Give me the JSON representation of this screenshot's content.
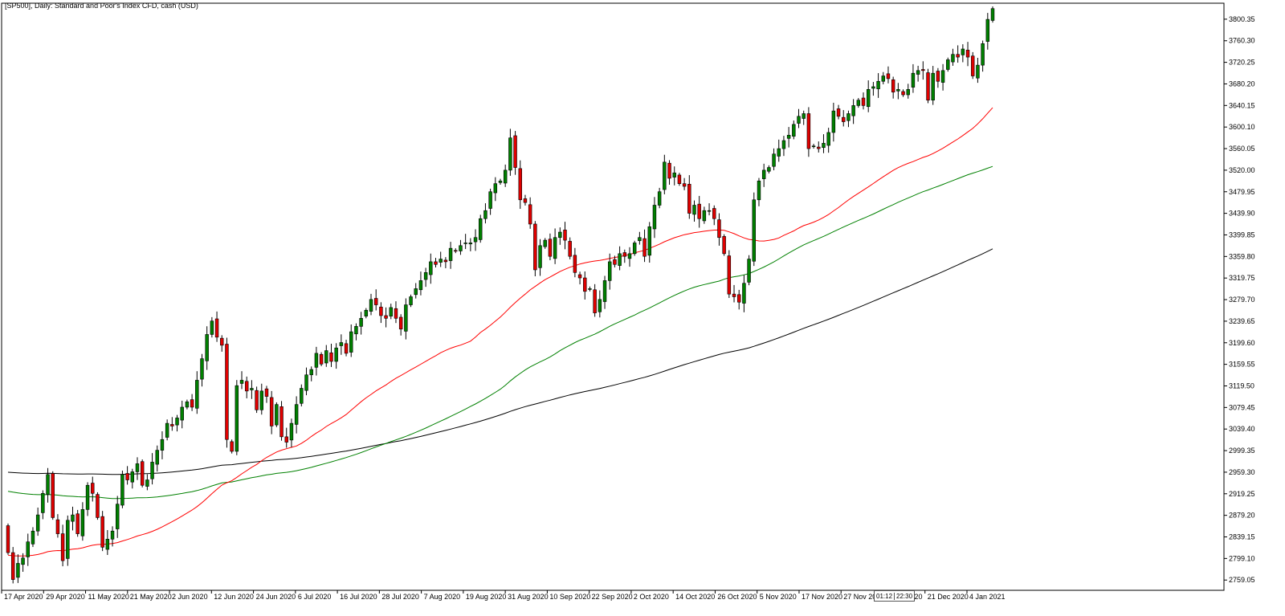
{
  "chart_data": {
    "type": "candlestick",
    "title": "[SP500], Daily:  Standard and Poor's Index CFD, cash (USD)",
    "symbol": "SP500",
    "timeframe": "Daily",
    "ylim": [
      2740,
      3830
    ],
    "y_ticks": [
      "3800.35",
      "3760.30",
      "3720.25",
      "3680.20",
      "3640.15",
      "3600.10",
      "3560.05",
      "3520.00",
      "3479.95",
      "3439.90",
      "3399.85",
      "3359.80",
      "3319.75",
      "3279.70",
      "3239.65",
      "3199.60",
      "3159.55",
      "3119.50",
      "3079.45",
      "3039.40",
      "2999.35",
      "2959.30",
      "2919.25",
      "2879.20",
      "2839.15",
      "2799.10",
      "2759.05"
    ],
    "x_ticks": [
      "17 Apr 2020",
      "29 Apr 2020",
      "11 May 2020",
      "21 May 2020",
      "2 Jun 2020",
      "12 Jun 2020",
      "24 Jun 2020",
      "6 Jul 2020",
      "16 Jul 2020",
      "28 Jul 2020",
      "7 Aug 2020",
      "19 Aug 2020",
      "31 Aug 2020",
      "10 Sep 2020",
      "22 Sep 2020",
      "2 Oct 2020",
      "14 Oct 2020",
      "26 Oct 2020",
      "5 Nov 2020",
      "17 Nov 2020",
      "27 Nov 2020",
      "9 Dec 2020",
      "21 Dec 2020",
      "4 Jan 2021"
    ],
    "closes": [
      2810,
      2760,
      2790,
      2800,
      2830,
      2850,
      2880,
      2920,
      2955,
      2875,
      2845,
      2795,
      2870,
      2880,
      2845,
      2890,
      2935,
      2920,
      2875,
      2820,
      2835,
      2850,
      2900,
      2955,
      2945,
      2960,
      2975,
      2935,
      2945,
      2978,
      3000,
      3020,
      3050,
      3045,
      3060,
      3080,
      3090,
      3080,
      3130,
      3170,
      3215,
      3240,
      3210,
      3195,
      3020,
      2998,
      3120,
      3130,
      3110,
      3115,
      3075,
      3110,
      3100,
      3045,
      3085,
      3025,
      3015,
      3050,
      3085,
      3115,
      3140,
      3150,
      3180,
      3160,
      3185,
      3165,
      3190,
      3200,
      3180,
      3220,
      3230,
      3245,
      3260,
      3280,
      3270,
      3250,
      3245,
      3265,
      3245,
      3225,
      3270,
      3285,
      3300,
      3315,
      3330,
      3350,
      3345,
      3355,
      3350,
      3375,
      3370,
      3380,
      3385,
      3385,
      3395,
      3430,
      3445,
      3480,
      3495,
      3500,
      3520,
      3580,
      3525,
      3465,
      3460,
      3420,
      3335,
      3380,
      3390,
      3360,
      3395,
      3405,
      3390,
      3360,
      3330,
      3320,
      3295,
      3300,
      3255,
      3280,
      3315,
      3350,
      3345,
      3365,
      3360,
      3365,
      3385,
      3395,
      3360,
      3415,
      3455,
      3480,
      3535,
      3505,
      3515,
      3495,
      3490,
      3440,
      3455,
      3430,
      3445,
      3445,
      3430,
      3395,
      3365,
      3290,
      3285,
      3275,
      3310,
      3355,
      3465,
      3500,
      3520,
      3525,
      3550,
      3560,
      3575,
      3585,
      3605,
      3620,
      3625,
      3560,
      3565,
      3560,
      3570,
      3590,
      3630,
      3620,
      3610,
      3625,
      3640,
      3650,
      3640,
      3670,
      3675,
      3685,
      3695,
      3690,
      3665,
      3670,
      3660,
      3670,
      3700,
      3705,
      3705,
      3650,
      3700,
      3685,
      3705,
      3725,
      3735,
      3730,
      3745,
      3730,
      3695,
      3715,
      3755,
      3800,
      3820
    ],
    "ma_fast_last": 3636,
    "ma_mid_last": 3527,
    "ma_slow_last": 3374,
    "colors": {
      "bull": "#008000",
      "bear": "#e00000",
      "ma_fast": "#ff0000",
      "ma_mid": "#008000",
      "ma_slow": "#000000"
    },
    "time_marker": [
      "01:12",
      "22:30"
    ]
  }
}
